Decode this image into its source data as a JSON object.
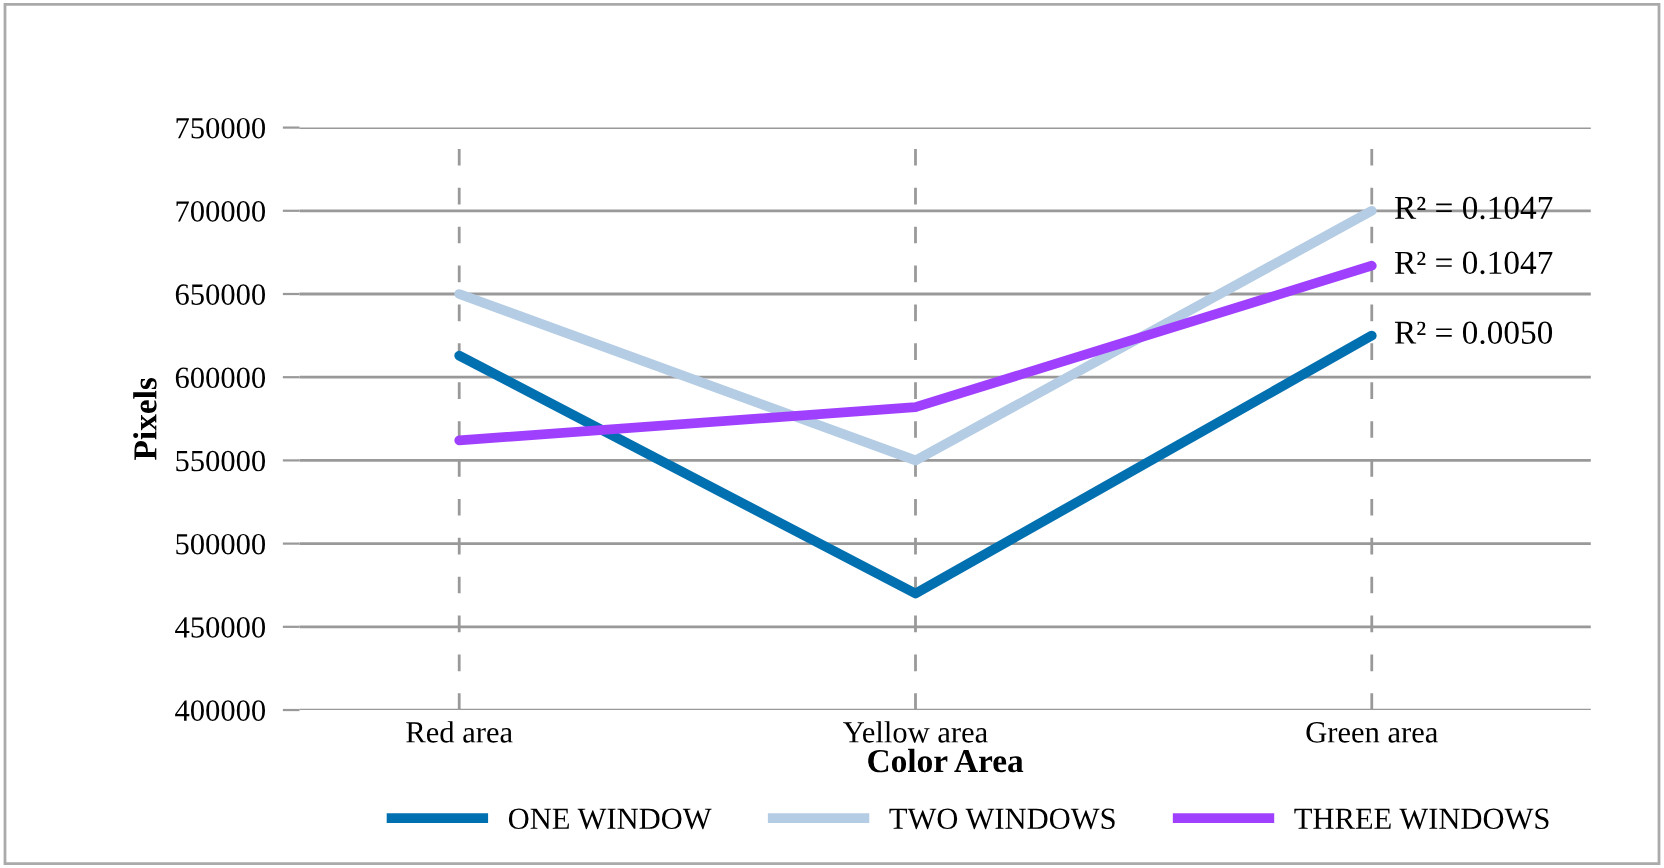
{
  "chart_data": {
    "type": "line",
    "xlabel": "Color Area",
    "ylabel": "Pixels",
    "categories": [
      "Red area",
      "Yellow area",
      "Green area"
    ],
    "series": [
      {
        "name": "ONE WINDOW",
        "color": "#0070b0",
        "values": [
          613000,
          470000,
          625000
        ]
      },
      {
        "name": "TWO WINDOWS",
        "color": "#b4cce4",
        "values": [
          650000,
          550000,
          700000
        ]
      },
      {
        "name": "THREE WINDOWS",
        "color": "#a040ff",
        "values": [
          562000,
          582000,
          667000
        ]
      }
    ],
    "ylim": [
      400000,
      750000
    ],
    "yticks": [
      400000,
      450000,
      500000,
      550000,
      600000,
      650000,
      700000,
      750000
    ],
    "grid": true,
    "legend": "bottom",
    "marker": "none",
    "line_style": "solid",
    "annotations": [
      {
        "text": "R² = 0.1047",
        "x": "Green area",
        "y": 700000
      },
      {
        "text": "R² = 0.1047",
        "x": "Green area",
        "y": 667000
      },
      {
        "text": "R² = 0.0050",
        "x": "Green area",
        "y": 625000
      }
    ]
  }
}
